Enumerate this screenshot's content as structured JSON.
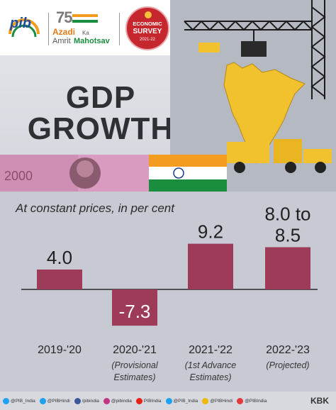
{
  "branding": {
    "pib": "pib",
    "azadi_number": "75",
    "azadi_line1": "Azadi",
    "azadi_ka": "Ka",
    "azadi_line2a": "Amrit",
    "azadi_line2b": "Mahotsav",
    "survey_line1": "ECONOMIC",
    "survey_line2": "SURVEY",
    "survey_year": "2021-22",
    "banknote_text": "2000"
  },
  "headline": {
    "line1": "GDP",
    "line2": "GROWTH"
  },
  "colors": {
    "bar": "#9d3b58",
    "survey_red": "#c6262e",
    "text_dark": "#2e3033",
    "panel_bg": "#c7cad3"
  },
  "chart_data": {
    "type": "bar",
    "title": "GDP GROWTH",
    "subtitle": "At constant prices, in per cent",
    "categories": [
      "2019-'20",
      "2020-'21",
      "2021-'22",
      "2022-'23"
    ],
    "category_notes": [
      [],
      [
        "(Provisional",
        "Estimates)"
      ],
      [
        "(1st Advance",
        "Estimates)"
      ],
      [
        "(Projected)"
      ]
    ],
    "values": [
      4.0,
      -7.3,
      9.2,
      8.5
    ],
    "value_labels": [
      [
        "4.0"
      ],
      [
        "-7.3"
      ],
      [
        "9.2"
      ],
      [
        "8.0 to",
        "8.5"
      ]
    ],
    "xlabel": "",
    "ylabel": "",
    "ylim": [
      -8,
      10
    ],
    "grid": false
  },
  "footer": {
    "handles": [
      {
        "icon": "twitter-icon",
        "text": "@PIB_India",
        "color": "#1da1f2"
      },
      {
        "icon": "twitter-icon",
        "text": "@PIBHindi",
        "color": "#1da1f2"
      },
      {
        "icon": "facebook-icon",
        "text": "/pibindia",
        "color": "#3b5998"
      },
      {
        "icon": "instagram-icon",
        "text": "@pibindia",
        "color": "#c13584"
      },
      {
        "icon": "youtube-icon",
        "text": "PIBIndia",
        "color": "#e62117"
      },
      {
        "icon": "twitter-icon",
        "text": "@PIB_India",
        "color": "#1da1f2"
      },
      {
        "icon": "koo-icon",
        "text": "@PIBHindi",
        "color": "#f2b705"
      },
      {
        "icon": "koo-icon",
        "text": "@PIBIndia",
        "color": "#e23a3a"
      }
    ],
    "credit": "KBK"
  }
}
